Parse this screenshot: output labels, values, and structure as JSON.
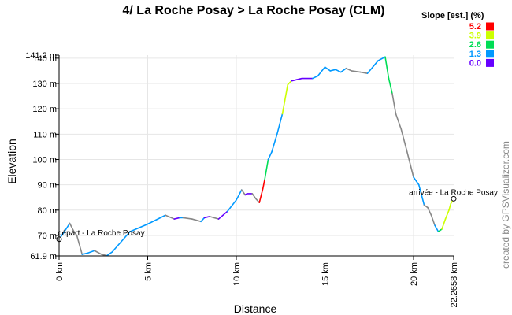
{
  "chart_data": {
    "type": "line",
    "title": "4/ La Roche Posay > La Roche Posay (CLM)",
    "xlabel": "Distance",
    "ylabel": "Elevation",
    "xlim": [
      0,
      22.2658
    ],
    "ylim": [
      61.9,
      141.2
    ],
    "x_ticks": [
      "0 km",
      "5 km",
      "10 km",
      "15 km",
      "20 km",
      "22.2658 km"
    ],
    "y_ticks": [
      "61.9 m",
      "70 m",
      "80 m",
      "90 m",
      "100 m",
      "110 m",
      "120 m",
      "130 m",
      "140 m",
      "141.2 m"
    ],
    "legend": {
      "title": "Slope [est.] (%)",
      "placement": "top-right",
      "entries": [
        {
          "label": "5.2",
          "color": "#ff0000"
        },
        {
          "label": "3.9",
          "color": "#ccff00"
        },
        {
          "label": "2.6",
          "color": "#00dd55"
        },
        {
          "label": "1.3",
          "color": "#0099ff"
        },
        {
          "label": "0.0",
          "color": "#6600ff"
        }
      ]
    },
    "series": [
      {
        "x": [
          0,
          0.3,
          0.6,
          0.8,
          1.0,
          1.3,
          1.6,
          2.0,
          2.4,
          2.7,
          3.0,
          3.5,
          4.0,
          5.0,
          6.0,
          6.5,
          6.8,
          7.0,
          7.5,
          8.0,
          8.2,
          8.5,
          9.0,
          9.5,
          10.0,
          10.3,
          10.5,
          10.6,
          10.9,
          11.1,
          11.3,
          11.5,
          11.6,
          11.8,
          12.0,
          12.3,
          12.6,
          12.9,
          13.1,
          13.4,
          13.7,
          14.3,
          14.6,
          15.0,
          15.3,
          15.6,
          15.9,
          16.2,
          16.5,
          17.0,
          17.4,
          17.7,
          18.0,
          18.4,
          18.6,
          18.8,
          19.0,
          19.3,
          19.6,
          20.0,
          20.3,
          20.6,
          20.8,
          21.0,
          21.2,
          21.4,
          21.6,
          21.8,
          22.0,
          22.1,
          22.2658
        ],
        "y": [
          68.5,
          71.5,
          74.8,
          72.0,
          70.0,
          62.5,
          63.0,
          64.0,
          62.5,
          62.0,
          63.5,
          67.5,
          71.5,
          74.5,
          78.0,
          76.5,
          77.0,
          77.0,
          76.5,
          75.5,
          77.0,
          77.5,
          76.5,
          79.5,
          84.0,
          88.0,
          86.0,
          86.5,
          86.5,
          84.5,
          83.0,
          88.5,
          92.0,
          100.0,
          103.0,
          110.0,
          118.0,
          129.5,
          131.0,
          131.5,
          132.0,
          132.0,
          133.0,
          136.5,
          135.0,
          135.5,
          134.5,
          136.0,
          135.0,
          134.5,
          134.0,
          136.5,
          139.0,
          140.5,
          132.0,
          126.0,
          118.0,
          112.0,
          104.0,
          93.0,
          90.0,
          82.0,
          81.0,
          78.0,
          74.0,
          71.5,
          72.5,
          76.5,
          80.0,
          82.5,
          84.5
        ],
        "slopes": [
          1.3,
          1.3,
          0.0,
          0.0,
          0.0,
          1.3,
          1.3,
          0.0,
          0.0,
          1.3,
          1.3,
          1.3,
          1.3,
          1.3,
          0.0,
          0.0,
          1.3,
          0.0,
          0.0,
          1.3,
          0.0,
          0.0,
          0.0,
          1.3,
          1.3,
          0.0,
          0.0,
          0.0,
          0.0,
          0.0,
          5.2,
          5.2,
          2.6,
          1.3,
          1.3,
          1.3,
          3.9,
          3.9,
          0.0,
          0.0,
          0.0,
          1.3,
          1.3,
          1.3,
          1.3,
          1.3,
          1.3,
          0.0,
          0.0,
          0.0,
          1.3,
          1.3,
          1.3,
          2.6,
          2.6,
          0.0,
          0.0,
          0.0,
          0.0,
          1.3,
          1.3,
          0.0,
          0.0,
          0.0,
          1.3,
          2.6,
          3.9,
          3.9,
          3.9,
          3.9
        ]
      }
    ],
    "annotations": [
      {
        "label": "départ - La Roche Posay",
        "x": 0,
        "y": 68.5
      },
      {
        "label": "arrivée - La Roche Posay",
        "x": 22.2658,
        "y": 84.5
      }
    ],
    "credit": "created by GPSVisualizer.com"
  }
}
